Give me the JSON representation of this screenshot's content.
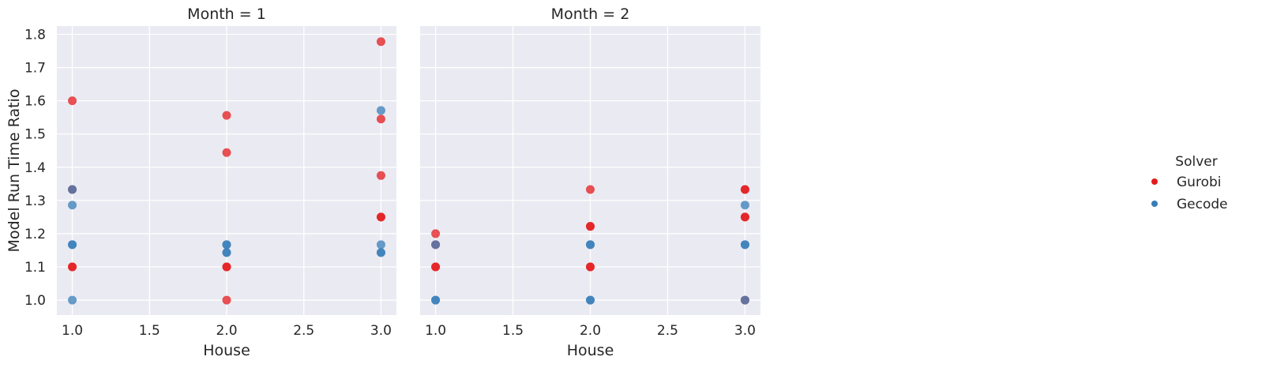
{
  "chart_data": {
    "type": "scatter",
    "ylabel": "Model Run Time Ratio",
    "xlabel": "House",
    "xlim": [
      0.9,
      3.1
    ],
    "ylim": [
      0.955,
      1.825
    ],
    "xticks": [
      "1.0",
      "1.5",
      "2.0",
      "2.5",
      "3.0"
    ],
    "yticks": [
      "1.0",
      "1.1",
      "1.2",
      "1.3",
      "1.4",
      "1.5",
      "1.6",
      "1.7",
      "1.8"
    ],
    "grid": true,
    "legend": {
      "title": "Solver",
      "placement": "right",
      "entries": [
        {
          "label": "Gurobi",
          "color": "#e41a1c"
        },
        {
          "label": "Gecode",
          "color": "#377eb8"
        }
      ]
    },
    "panels": [
      {
        "title": "Month = 1",
        "series": [
          {
            "name": "Gurobi",
            "color": "#e41a1c",
            "points": [
              [
                1.0,
                1.6
              ],
              [
                1.0,
                1.1
              ],
              [
                1.0,
                1.1
              ],
              [
                1.0,
                1.333
              ],
              [
                2.0,
                1.556
              ],
              [
                2.0,
                1.444
              ],
              [
                2.0,
                1.1
              ],
              [
                2.0,
                1.1
              ],
              [
                2.0,
                1.0
              ],
              [
                3.0,
                1.778
              ],
              [
                3.0,
                1.545
              ],
              [
                3.0,
                1.375
              ],
              [
                3.0,
                1.25
              ],
              [
                3.0,
                1.25
              ]
            ]
          },
          {
            "name": "Gecode",
            "color": "#377eb8",
            "points": [
              [
                1.0,
                1.333
              ],
              [
                1.0,
                1.286
              ],
              [
                1.0,
                1.167
              ],
              [
                1.0,
                1.167
              ],
              [
                1.0,
                1.0
              ],
              [
                2.0,
                1.167
              ],
              [
                2.0,
                1.167
              ],
              [
                2.0,
                1.143
              ],
              [
                2.0,
                1.143
              ],
              [
                3.0,
                1.571
              ],
              [
                3.0,
                1.167
              ],
              [
                3.0,
                1.143
              ],
              [
                3.0,
                1.143
              ]
            ]
          }
        ]
      },
      {
        "title": "Month = 2",
        "series": [
          {
            "name": "Gurobi",
            "color": "#e41a1c",
            "points": [
              [
                1.0,
                1.2
              ],
              [
                1.0,
                1.167
              ],
              [
                1.0,
                1.1
              ],
              [
                1.0,
                1.1
              ],
              [
                2.0,
                1.333
              ],
              [
                2.0,
                1.222
              ],
              [
                2.0,
                1.222
              ],
              [
                2.0,
                1.1
              ],
              [
                2.0,
                1.1
              ],
              [
                3.0,
                1.333
              ],
              [
                3.0,
                1.333
              ],
              [
                3.0,
                1.25
              ],
              [
                3.0,
                1.25
              ],
              [
                3.0,
                1.0
              ]
            ]
          },
          {
            "name": "Gecode",
            "color": "#377eb8",
            "points": [
              [
                1.0,
                1.167
              ],
              [
                1.0,
                1.0
              ],
              [
                1.0,
                1.0
              ],
              [
                2.0,
                1.167
              ],
              [
                2.0,
                1.167
              ],
              [
                2.0,
                1.0
              ],
              [
                2.0,
                1.0
              ],
              [
                3.0,
                1.286
              ],
              [
                3.0,
                1.167
              ],
              [
                3.0,
                1.167
              ],
              [
                3.0,
                1.0
              ]
            ]
          }
        ]
      }
    ]
  }
}
